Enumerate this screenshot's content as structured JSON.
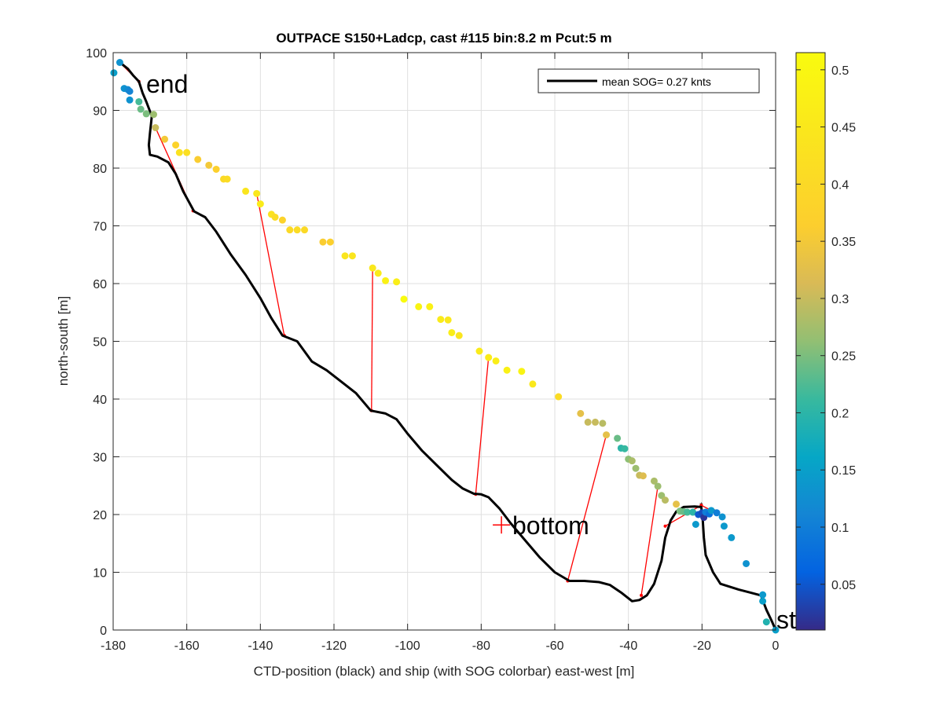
{
  "figure": {
    "title": "OUTPACE S150+Ladcp, cast #115 bin:8.2 m  Pcut:5 m",
    "xlabel": "CTD-position (black) and ship (with SOG colorbar) east-west [m]",
    "ylabel": "north-south [m]",
    "legend_text": "mean SOG=  0.27 knts",
    "annotation_end": "end",
    "annotation_bottom": "bottom",
    "annotation_start": "start"
  },
  "chart_data": {
    "type": "scatter",
    "title": "OUTPACE S150+Ladcp, cast #115 bin:8.2 m  Pcut:5 m",
    "xlabel": "CTD-position (black) and ship (with SOG colorbar) east-west [m]",
    "ylabel": "north-south [m]",
    "xlim": [
      -180,
      0
    ],
    "ylim": [
      0,
      100
    ],
    "xticks": [
      -180,
      -160,
      -140,
      -120,
      -100,
      -80,
      -60,
      -40,
      -20,
      0
    ],
    "yticks": [
      0,
      10,
      20,
      30,
      40,
      50,
      60,
      70,
      80,
      90,
      100
    ],
    "grid": true,
    "legend": {
      "position": "top-right",
      "entries": [
        "mean SOG=  0.27 knts"
      ]
    },
    "colorbar": {
      "range": [
        0.01,
        0.515
      ],
      "ticks": [
        0.05,
        0.1,
        0.15,
        0.2,
        0.25,
        0.3,
        0.35,
        0.4,
        0.45,
        0.5
      ],
      "colormap": "parula"
    },
    "ctd_track": {
      "color": "#000000",
      "points": [
        [
          0,
          0
        ],
        [
          -1,
          1.5
        ],
        [
          -2.5,
          3.5
        ],
        [
          -4,
          6
        ],
        [
          -7,
          6.5
        ],
        [
          -10,
          7
        ],
        [
          -15,
          8
        ],
        [
          -17,
          10
        ],
        [
          -19,
          13
        ],
        [
          -19.5,
          16
        ],
        [
          -19.8,
          19
        ],
        [
          -20.2,
          21.3
        ],
        [
          -22,
          21.4
        ],
        [
          -25,
          21.3
        ],
        [
          -27,
          20.5
        ],
        [
          -28.5,
          19
        ],
        [
          -30,
          16
        ],
        [
          -31,
          12
        ],
        [
          -33,
          8
        ],
        [
          -35,
          6
        ],
        [
          -37,
          5.2
        ],
        [
          -39,
          5
        ],
        [
          -42,
          6.5
        ],
        [
          -45,
          7.8
        ],
        [
          -48,
          8.3
        ],
        [
          -52,
          8.5
        ],
        [
          -56,
          8.5
        ],
        [
          -60,
          10
        ],
        [
          -64,
          12.5
        ],
        [
          -68,
          15.5
        ],
        [
          -72,
          18.5
        ],
        [
          -75,
          21
        ],
        [
          -78,
          23
        ],
        [
          -80,
          23.5
        ],
        [
          -82,
          23.6
        ],
        [
          -85,
          24.5
        ],
        [
          -88,
          26
        ],
        [
          -92,
          28.5
        ],
        [
          -96,
          31
        ],
        [
          -100,
          34
        ],
        [
          -103,
          36.5
        ],
        [
          -106,
          37.5
        ],
        [
          -110,
          38
        ],
        [
          -114,
          41
        ],
        [
          -118,
          43
        ],
        [
          -122,
          45
        ],
        [
          -126,
          46.5
        ],
        [
          -130,
          50
        ],
        [
          -134,
          51
        ],
        [
          -137,
          54
        ],
        [
          -140,
          57.5
        ],
        [
          -144,
          61.5
        ],
        [
          -148,
          65
        ],
        [
          -152,
          69
        ],
        [
          -155,
          71.5
        ],
        [
          -158,
          72.5
        ],
        [
          -161,
          76
        ],
        [
          -163,
          79
        ],
        [
          -165,
          81
        ],
        [
          -168,
          82
        ],
        [
          -170,
          82.3
        ],
        [
          -170.3,
          84
        ],
        [
          -170,
          86
        ],
        [
          -169.5,
          89
        ],
        [
          -171,
          91.5
        ],
        [
          -172,
          93
        ],
        [
          -173,
          95
        ],
        [
          -174.5,
          96
        ],
        [
          -176,
          97.2
        ],
        [
          -178,
          98.2
        ],
        [
          -179,
          98.3
        ]
      ]
    },
    "ship_track": {
      "points": [
        [
          -179.8,
          96.5,
          0.15
        ],
        [
          -178.2,
          98.3,
          0.13
        ],
        [
          -177,
          93.8,
          0.13
        ],
        [
          -176,
          93.6,
          0.12
        ],
        [
          -175.5,
          93.3,
          0.11
        ],
        [
          -175.5,
          91.8,
          0.13
        ],
        [
          -173,
          91.5,
          0.22
        ],
        [
          -172.5,
          90.2,
          0.24
        ],
        [
          -171,
          89.4,
          0.25
        ],
        [
          -169,
          89.3,
          0.27
        ],
        [
          -168.5,
          87,
          0.3
        ],
        [
          -166,
          85,
          0.35
        ],
        [
          -163,
          84,
          0.38
        ],
        [
          -162,
          82.7,
          0.43
        ],
        [
          -160,
          82.7,
          0.42
        ],
        [
          -157,
          81.5,
          0.36
        ],
        [
          -154,
          80.5,
          0.35
        ],
        [
          -152,
          79.8,
          0.37
        ],
        [
          -150,
          78.1,
          0.4
        ],
        [
          -149,
          78.1,
          0.41
        ],
        [
          -144,
          76,
          0.44
        ],
        [
          -141,
          75.6,
          0.45
        ],
        [
          -140,
          73.8,
          0.46
        ],
        [
          -137,
          72,
          0.43
        ],
        [
          -136,
          71.5,
          0.41
        ],
        [
          -134,
          71,
          0.38
        ],
        [
          -132,
          69.3,
          0.4
        ],
        [
          -130,
          69.3,
          0.41
        ],
        [
          -128,
          69.3,
          0.4
        ],
        [
          -123,
          67.2,
          0.36
        ],
        [
          -121,
          67.2,
          0.37
        ],
        [
          -117,
          64.8,
          0.44
        ],
        [
          -115,
          64.8,
          0.44
        ],
        [
          -109.5,
          62.7,
          0.45
        ],
        [
          -108,
          61.8,
          0.46
        ],
        [
          -106,
          60.5,
          0.48
        ],
        [
          -103,
          60.3,
          0.47
        ],
        [
          -101,
          57.3,
          0.52
        ],
        [
          -97,
          56,
          0.49
        ],
        [
          -94,
          56,
          0.48
        ],
        [
          -91,
          53.8,
          0.46
        ],
        [
          -89,
          53.7,
          0.45
        ],
        [
          -88,
          51.5,
          0.47
        ],
        [
          -86,
          51,
          0.44
        ],
        [
          -80.5,
          48.3,
          0.46
        ],
        [
          -78,
          47.2,
          0.46
        ],
        [
          -76,
          46.6,
          0.47
        ],
        [
          -73,
          45,
          0.48
        ],
        [
          -69,
          44.8,
          0.49
        ],
        [
          -66,
          42.6,
          0.45
        ],
        [
          -59,
          40.4,
          0.41
        ],
        [
          -53,
          37.5,
          0.33
        ],
        [
          -51,
          36,
          0.3
        ],
        [
          -49,
          36,
          0.3
        ],
        [
          -47,
          35.8,
          0.29
        ],
        [
          -46,
          33.8,
          0.33
        ],
        [
          -43,
          33.2,
          0.24
        ],
        [
          -42,
          31.5,
          0.2
        ],
        [
          -41,
          31.4,
          0.21
        ],
        [
          -40,
          29.6,
          0.26
        ],
        [
          -39,
          29.3,
          0.28
        ],
        [
          -38,
          28,
          0.27
        ],
        [
          -37,
          26.8,
          0.3
        ],
        [
          -36,
          26.7,
          0.32
        ],
        [
          -33,
          25.8,
          0.28
        ],
        [
          -32,
          24.9,
          0.27
        ],
        [
          -31,
          23.3,
          0.27
        ],
        [
          -30,
          22.5,
          0.29
        ],
        [
          -27,
          21.8,
          0.33
        ],
        [
          -26,
          20.6,
          0.25
        ],
        [
          -25,
          20.5,
          0.24
        ],
        [
          -24,
          20.4,
          0.22
        ],
        [
          -22.5,
          20.4,
          0.2
        ],
        [
          -21.7,
          18.3,
          0.14
        ],
        [
          -21,
          20,
          0.05
        ],
        [
          -20,
          20.3,
          0.04
        ],
        [
          -19.5,
          19.5,
          0.02
        ],
        [
          -19,
          20.4,
          0.1
        ],
        [
          -18,
          20.1,
          0.08
        ],
        [
          -17.5,
          20.7,
          0.14
        ],
        [
          -16,
          20.3,
          0.1
        ],
        [
          -14.5,
          19.6,
          0.13
        ],
        [
          -14,
          18,
          0.14
        ],
        [
          -12,
          16,
          0.14
        ],
        [
          -8,
          11.5,
          0.13
        ],
        [
          -3.5,
          6.1,
          0.14
        ],
        [
          -3.5,
          5,
          0.15
        ],
        [
          -2.5,
          1.4,
          0.19
        ],
        [
          0,
          0,
          0.15
        ]
      ]
    },
    "connectors": [
      [
        [
          -173,
          95
        ],
        [
          -178.2,
          98.3
        ]
      ],
      [
        [
          -158.3,
          72.6
        ],
        [
          -168.5,
          87
        ]
      ],
      [
        [
          -133.5,
          51
        ],
        [
          -141,
          75.6
        ]
      ],
      [
        [
          -109.8,
          38
        ],
        [
          -109.5,
          62.7
        ]
      ],
      [
        [
          -81.5,
          23.5
        ],
        [
          -78,
          47.2
        ]
      ],
      [
        [
          -56.5,
          8.5
        ],
        [
          -46,
          33.8
        ]
      ],
      [
        [
          -36.5,
          6
        ],
        [
          -32,
          24.9
        ]
      ],
      [
        [
          -30,
          18
        ],
        [
          -20.2,
          21.6
        ]
      ],
      [
        [
          -20.2,
          21.6
        ],
        [
          -16.5,
          20.4
        ]
      ],
      [
        [
          -0.4,
          0.1
        ],
        [
          -0.2,
          0.2
        ]
      ]
    ],
    "bottom_marker": [
      -74.5,
      18.2
    ],
    "end_marker": [
      -173,
      95
    ],
    "start_marker": [
      0,
      0
    ]
  }
}
